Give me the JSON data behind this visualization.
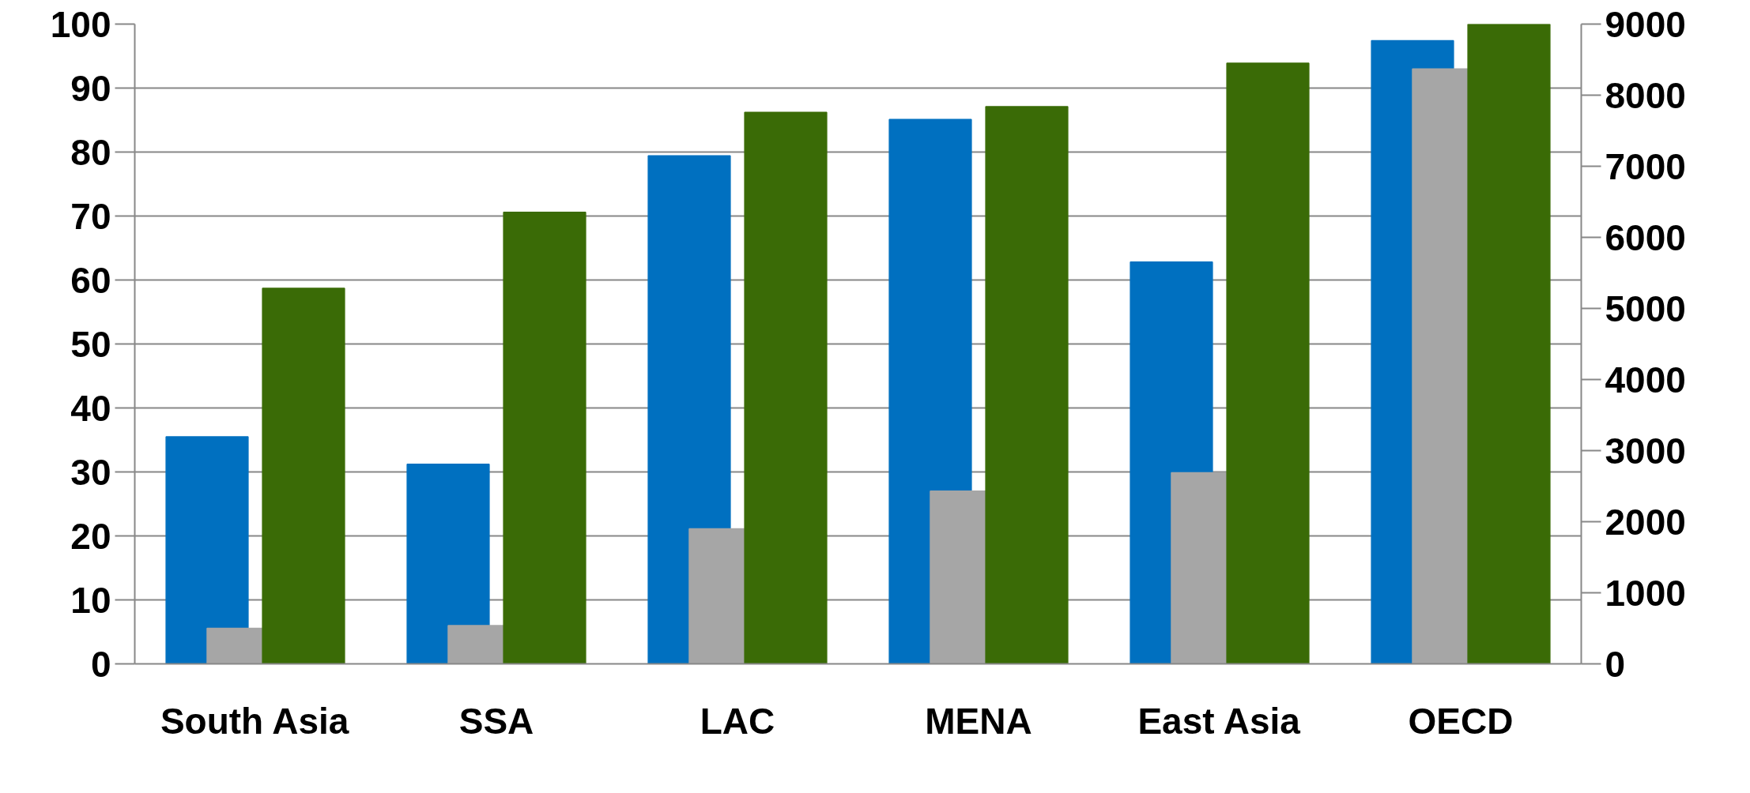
{
  "chart_data": {
    "type": "bar",
    "categories": [
      "South Asia",
      "SSA",
      "LAC",
      "MENA",
      "East Asia",
      "OECD"
    ],
    "series": [
      {
        "color": "#0070c0",
        "values": [
          35.5,
          31.2,
          79.4,
          85.1,
          62.8,
          97.4
        ]
      },
      {
        "color": "#a6a6a6",
        "axis": "y2",
        "values": [
          500,
          540,
          1900,
          2430,
          2690,
          8370
        ]
      },
      {
        "color": "#3a6b06",
        "values": [
          58.7,
          70.6,
          86.2,
          87.1,
          93.9,
          100
        ]
      }
    ],
    "ylim": [
      0,
      100
    ],
    "yticks": [
      0,
      10,
      20,
      30,
      40,
      50,
      60,
      70,
      80,
      90,
      100
    ],
    "y2lim": [
      0,
      9000
    ],
    "y2ticks": [
      0,
      1000,
      2000,
      3000,
      4000,
      5000,
      6000,
      7000,
      8000,
      9000
    ],
    "grid": "y"
  }
}
